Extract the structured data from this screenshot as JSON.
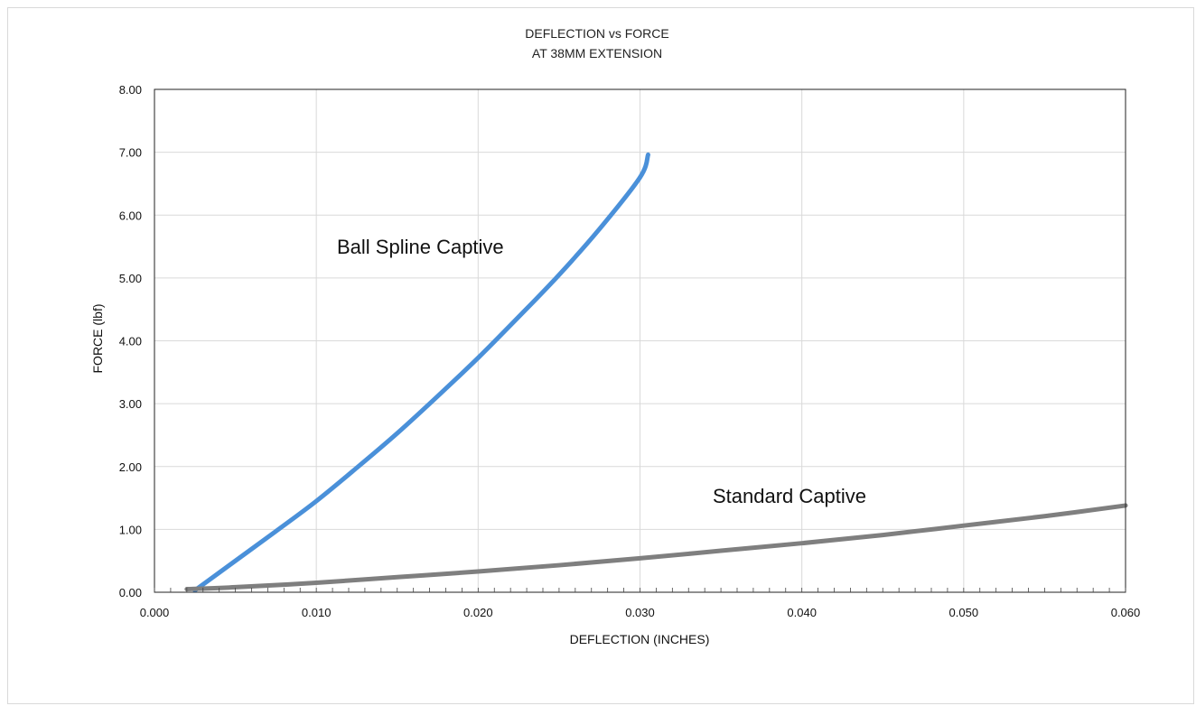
{
  "chart_data": {
    "type": "line",
    "title": "DEFLECTION vs FORCE",
    "subtitle": "AT 38MM EXTENSION",
    "xlabel": "DEFLECTION (INCHES)",
    "ylabel": "FORCE (lbf)",
    "xlim": [
      0.0,
      0.06
    ],
    "ylim": [
      0.0,
      8.0
    ],
    "x_ticks": [
      "0.000",
      "0.010",
      "0.020",
      "0.030",
      "0.040",
      "0.050",
      "0.060"
    ],
    "y_ticks": [
      "0.00",
      "1.00",
      "2.00",
      "3.00",
      "4.00",
      "5.00",
      "6.00",
      "7.00",
      "8.00"
    ],
    "grid": true,
    "legend": "none",
    "series": [
      {
        "name": "Ball Spline Captive",
        "color": "#4a90d9",
        "x": [
          0.0025,
          0.005,
          0.0075,
          0.01,
          0.0125,
          0.015,
          0.0175,
          0.02,
          0.0225,
          0.025,
          0.0275,
          0.03,
          0.0305
        ],
        "y": [
          0.03,
          0.5,
          0.97,
          1.45,
          1.98,
          2.53,
          3.12,
          3.73,
          4.38,
          5.05,
          5.78,
          6.6,
          6.96
        ]
      },
      {
        "name": "Standard Captive",
        "color": "#7f7f7f",
        "x": [
          0.002,
          0.005,
          0.01,
          0.015,
          0.02,
          0.025,
          0.03,
          0.035,
          0.04,
          0.045,
          0.05,
          0.055,
          0.06
        ],
        "y": [
          0.05,
          0.08,
          0.15,
          0.24,
          0.33,
          0.43,
          0.54,
          0.66,
          0.78,
          0.91,
          1.06,
          1.21,
          1.38
        ]
      }
    ]
  }
}
